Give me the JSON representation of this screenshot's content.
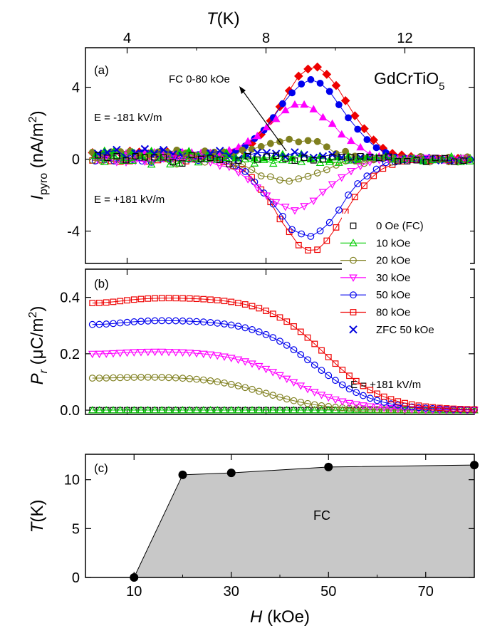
{
  "chart_data": [
    {
      "panel": "(a)",
      "type": "scatter",
      "compound": "GdCrTiO",
      "compound_sub": "5",
      "top_axis": {
        "label": "T",
        "unit": "(K)",
        "ticks": [
          "4",
          "8",
          "12"
        ]
      },
      "ylabel": {
        "main": "I",
        "sub": "pyro",
        "unit": "(nA/m",
        "unit_sup": "2",
        "unit_close": ")"
      },
      "yticks": [
        "4",
        "0",
        "-4"
      ],
      "xlim": [
        2.8,
        14.0
      ],
      "ylim": [
        -5.8,
        6.2
      ],
      "annotations": [
        "FC 0-80 kOe",
        "E = -181 kV/m",
        "E = +181 kV/m"
      ],
      "curves": [
        {
          "style": "filled",
          "marker": "diamond",
          "color": "#ee0000",
          "peak_x": 9.4,
          "amp": 5.1,
          "width": 1.35
        },
        {
          "style": "filled",
          "marker": "circle",
          "color": "#0000ee",
          "peak_x": 9.3,
          "amp": 4.4,
          "width": 1.35
        },
        {
          "style": "filled",
          "marker": "triangle-up",
          "color": "#ff00ff",
          "peak_x": 9.0,
          "amp": 3.0,
          "width": 1.35
        },
        {
          "style": "filled",
          "marker": "circle",
          "color": "#808020",
          "peak_x": 8.8,
          "amp": 1.1,
          "width": 1.3
        },
        {
          "style": "filled",
          "marker": "triangle-up",
          "color": "#00cc00",
          "peak_x": 8.7,
          "amp": 0.15,
          "width": 1.5
        },
        {
          "style": "filled",
          "marker": "cross",
          "color": "#0000dd",
          "peak_x": 8.7,
          "amp": 0.25,
          "width": 1.4
        },
        {
          "style": "open",
          "marker": "square",
          "color": "#ee0000",
          "peak_x": 9.3,
          "amp": -5.1,
          "width": 1.35
        },
        {
          "style": "open",
          "marker": "circle",
          "color": "#0000ee",
          "peak_x": 9.2,
          "amp": -4.3,
          "width": 1.35
        },
        {
          "style": "open",
          "marker": "triangle-down",
          "color": "#ff00ff",
          "peak_x": 8.8,
          "amp": -2.8,
          "width": 1.35
        },
        {
          "style": "open",
          "marker": "circle",
          "color": "#808020",
          "peak_x": 8.7,
          "amp": -1.2,
          "width": 1.3
        },
        {
          "style": "open",
          "marker": "triangle-up",
          "color": "#00cc00",
          "peak_x": 8.7,
          "amp": -0.1,
          "width": 1.5
        },
        {
          "style": "open",
          "marker": "square",
          "color": "#000000",
          "peak_x": 8.7,
          "amp": 0.05,
          "width": 1.5
        }
      ]
    },
    {
      "panel": "(b)",
      "type": "line",
      "ylabel": {
        "main": "P",
        "sub": "r",
        "unit": "(μC/m",
        "unit_sup": "2",
        "unit_close": ")"
      },
      "yticks": [
        "0.0",
        "0.2",
        "0.4"
      ],
      "xlim": [
        2.8,
        14.0
      ],
      "ylim": [
        -0.015,
        0.5
      ],
      "annotation": "E = +181 kV/m",
      "series": [
        {
          "name": "0 Oe  (FC)",
          "color": "#000000",
          "marker": "square",
          "P0": 0.0,
          "Tc": 9.0
        },
        {
          "name": "10 kOe",
          "color": "#00cc00",
          "marker": "triangle-up",
          "P0": 0.0,
          "Tc": 9.0
        },
        {
          "name": "20 kOe",
          "color": "#808020",
          "marker": "circle",
          "P0": 0.12,
          "Tc": 8.0
        },
        {
          "name": "30 kOe",
          "color": "#ff00ff",
          "marker": "triangle-down",
          "P0": 0.21,
          "Tc": 8.7
        },
        {
          "name": "50 kOe",
          "color": "#0000ee",
          "marker": "circle",
          "P0": 0.32,
          "Tc": 9.4
        },
        {
          "name": "80 kOe",
          "color": "#ee0000",
          "marker": "square",
          "P0": 0.4,
          "Tc": 9.7
        },
        {
          "name": "ZFC 50 kOe",
          "color": "#0000dd",
          "marker": "cross",
          "P0": null,
          "Tc": null
        }
      ]
    },
    {
      "panel": "(c)",
      "type": "area",
      "xlabel": {
        "main": "H",
        "unit": "(kOe)"
      },
      "ylabel": {
        "main": "T",
        "unit": "(K)"
      },
      "xticks": [
        "10",
        "30",
        "50",
        "70"
      ],
      "xtick_values": [
        10,
        30,
        50,
        70
      ],
      "yticks": [
        "0",
        "5",
        "10"
      ],
      "ytick_values": [
        0,
        5,
        10
      ],
      "xlim": [
        0,
        80
      ],
      "ylim": [
        0,
        12.6
      ],
      "region_label": "FC",
      "x": [
        10,
        20,
        30,
        50,
        80
      ],
      "y": [
        0,
        10.5,
        10.7,
        11.3,
        11.5
      ],
      "fill": "#c8c8c8"
    }
  ]
}
